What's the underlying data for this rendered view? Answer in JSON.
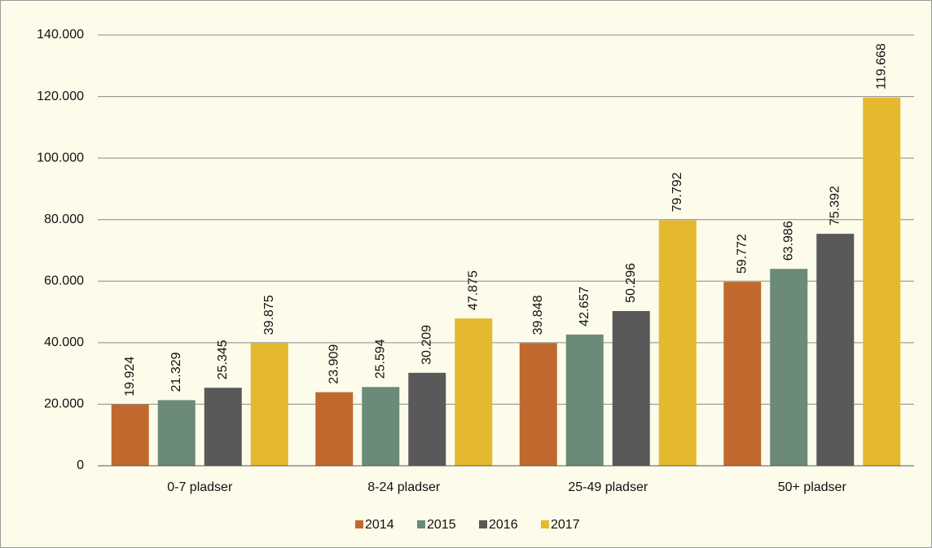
{
  "chart_data": {
    "type": "bar",
    "categories": [
      "0-7 pladser",
      "8-24 pladser",
      "25-49 pladser",
      "50+ pladser"
    ],
    "series": [
      {
        "name": "2014",
        "color": "#c0692f",
        "values": [
          19924,
          23909,
          39848,
          59772
        ],
        "value_labels": [
          "19.924",
          "23.909",
          "39.848",
          "59.772"
        ]
      },
      {
        "name": "2015",
        "color": "#6b8a78",
        "values": [
          21329,
          25594,
          42657,
          63986
        ],
        "value_labels": [
          "21.329",
          "25.594",
          "42.657",
          "63.986"
        ]
      },
      {
        "name": "2016",
        "color": "#595959",
        "values": [
          25345,
          30209,
          50296,
          75392
        ],
        "value_labels": [
          "25.345",
          "30.209",
          "50.296",
          "75.392"
        ]
      },
      {
        "name": "2017",
        "color": "#e4b92f",
        "values": [
          39875,
          47875,
          79792,
          119668
        ],
        "value_labels": [
          "39.875",
          "47.875",
          "79.792",
          "119.668"
        ]
      }
    ],
    "ylim": [
      0,
      140000
    ],
    "yticks": [
      0,
      {
        "value": 20000,
        "label": "20.000"
      },
      {
        "value": 40000,
        "label": "40.000"
      },
      {
        "value": 60000,
        "label": "60.000"
      },
      {
        "value": 80000,
        "label": "80.000"
      },
      {
        "value": 100000,
        "label": "100.000"
      },
      {
        "value": 120000,
        "label": "120.000"
      },
      {
        "value": 140000,
        "label": "140.000"
      }
    ],
    "grid": true,
    "legend": "bottom"
  }
}
